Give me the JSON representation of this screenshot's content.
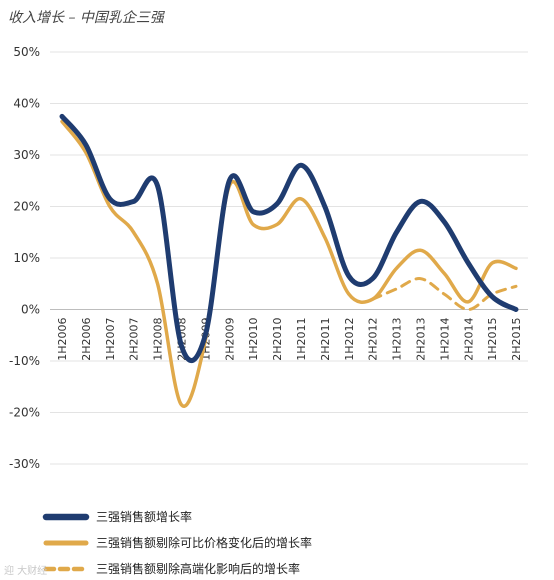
{
  "chart_data": {
    "type": "line",
    "title": "收入增长 – 中国乳企三强",
    "x": [
      "1H2006",
      "2H2006",
      "1H2007",
      "2H2007",
      "1H2008",
      "2H2008",
      "1H2009",
      "2H2009",
      "1H2010",
      "2H2010",
      "1H2011",
      "2H2011",
      "1H2012",
      "2H2012",
      "1H2013",
      "2H2013",
      "1H2014",
      "2H2014",
      "1H2015",
      "2H2015"
    ],
    "ylim": [
      -30,
      50
    ],
    "yticks": [
      -30,
      -20,
      -10,
      0,
      10,
      20,
      30,
      40,
      50
    ],
    "ytick_labels": [
      "-30%",
      "-20%",
      "-10%",
      "0%",
      "10%",
      "20%",
      "30%",
      "40%",
      "50%"
    ],
    "grid": true,
    "legend_position": "bottom",
    "series": [
      {
        "name": "三强销售额增长率",
        "color": "#1f3c70",
        "style": "solid",
        "width": 5,
        "values": [
          37.5,
          32,
          21.5,
          21,
          24,
          -7,
          -5,
          25,
          19,
          20.5,
          28,
          20,
          6.5,
          6,
          15,
          21,
          17,
          9,
          2.5,
          0
        ]
      },
      {
        "name": "三强销售额剔除可比价格变化后的增长率",
        "color": "#e0a94a",
        "style": "solid",
        "width": 3.5,
        "values": [
          36.5,
          30.5,
          20,
          15,
          5,
          -18.5,
          -6,
          24,
          16.5,
          16.5,
          21.5,
          14,
          3,
          2,
          8,
          11.5,
          7,
          1.5,
          9,
          8
        ]
      },
      {
        "name": "三强销售额剔除高端化影响后的增长率",
        "color": "#e0a94a",
        "style": "dashed",
        "width": 3,
        "values": [
          null,
          null,
          null,
          null,
          null,
          null,
          null,
          null,
          null,
          null,
          null,
          null,
          null,
          2,
          4,
          6,
          3,
          0,
          3,
          4.5
        ]
      }
    ]
  },
  "watermark": "迎 大财经"
}
